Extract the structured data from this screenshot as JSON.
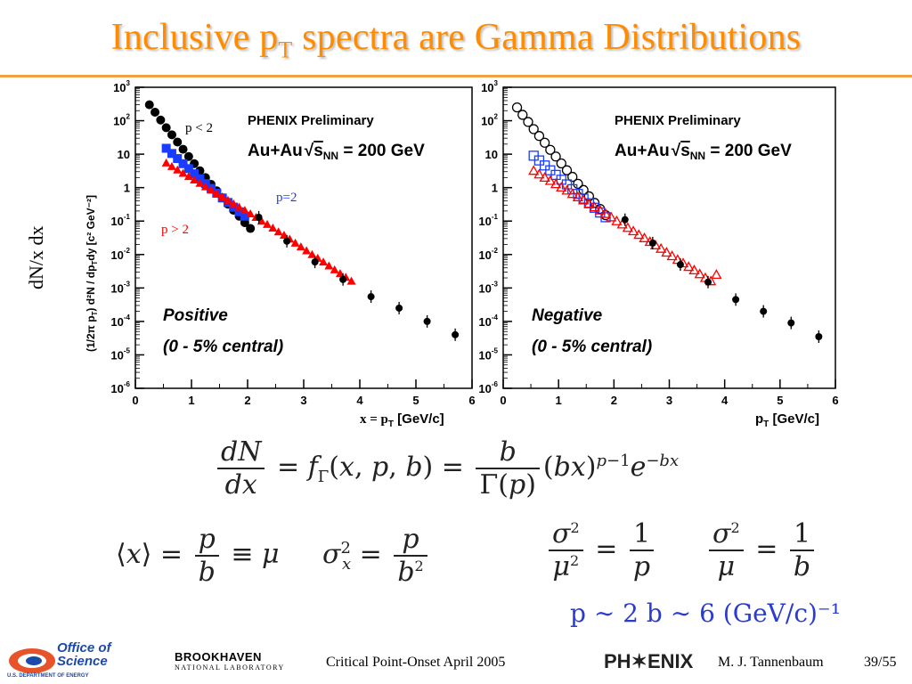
{
  "slide": {
    "title_main": "Inclusive p",
    "title_sub": "T",
    "title_rest": " spectra are Gamma Distributions",
    "side_label": "dN/x dx"
  },
  "left_panel": {
    "header": "PHENIX Preliminary",
    "system": "Au+Au",
    "energy": "s",
    "energy_sub": "NN",
    "energy_val": " = 200 GeV",
    "species": "Positive",
    "centrality": "(0 - 5% central)",
    "xlabel_prefix": "x = p",
    "xlabel_sub": "T",
    "xlabel_unit": " [GeV/c]",
    "ylabel": "(1/2π p",
    "ylabel_rest": ") d²N / dp",
    "ylabel_tail": "dy [c² GeV⁻²]",
    "annot_plt2": "p < 2",
    "annot_p2": "p=2",
    "annot_pgt2": "p > 2"
  },
  "right_panel": {
    "header": "PHENIX Preliminary",
    "system": "Au+Au",
    "energy": "s",
    "energy_sub": "NN",
    "energy_val": " = 200 GeV",
    "species": "Negative",
    "centrality": "(0 - 5% central)",
    "xlabel_prefix": "p",
    "xlabel_sub": "T",
    "xlabel_unit": " [GeV/c]"
  },
  "chart_data": [
    {
      "type": "scatter",
      "title": "PHENIX Preliminary",
      "xlabel": "x = pT [GeV/c]",
      "ylabel": "(1/2π pT) d²N / dpT dy [c² GeV⁻²]",
      "xlim": [
        0,
        6
      ],
      "ylim": [
        1e-06,
        1000
      ],
      "yscale": "log",
      "x_ticks": [
        "0",
        "1",
        "2",
        "3",
        "4",
        "5",
        "6"
      ],
      "y_ticks": [
        "10^3",
        "10^2",
        "10",
        "1",
        "10^-1",
        "10^-2",
        "10^-3",
        "10^-4",
        "10^-5",
        "10^-6"
      ],
      "series": [
        {
          "name": "black",
          "color": "#000000",
          "x": [
            0.25,
            0.35,
            0.45,
            0.55,
            0.65,
            0.75,
            0.85,
            0.95,
            1.05,
            1.15,
            1.25,
            1.35,
            1.45,
            1.55,
            1.65,
            1.75,
            1.85,
            1.95,
            2.05
          ],
          "y": [
            300,
            180,
            105,
            62,
            38,
            23,
            14,
            8.5,
            5.2,
            3.2,
            2.0,
            1.25,
            0.8,
            0.5,
            0.32,
            0.21,
            0.14,
            0.09,
            0.06
          ]
        },
        {
          "name": "blue",
          "color": "#1a3cff",
          "x": [
            0.55,
            0.65,
            0.75,
            0.85,
            0.95,
            1.05,
            1.15,
            1.25,
            1.35,
            1.45,
            1.55,
            1.65,
            1.75,
            1.85,
            1.95
          ],
          "y": [
            15,
            10.5,
            7.4,
            5.2,
            3.7,
            2.6,
            1.85,
            1.32,
            0.95,
            0.68,
            0.49,
            0.36,
            0.26,
            0.19,
            0.14
          ]
        },
        {
          "name": "red",
          "color": "#ff0000",
          "x": [
            0.55,
            0.65,
            0.75,
            0.85,
            0.95,
            1.05,
            1.15,
            1.25,
            1.35,
            1.45,
            1.55,
            1.65,
            1.75,
            1.85,
            1.95,
            2.05,
            2.15,
            2.25,
            2.35,
            2.45,
            2.55,
            2.65,
            2.75,
            2.85,
            2.95,
            3.05,
            3.15,
            3.25,
            3.35,
            3.45,
            3.55,
            3.65,
            3.75,
            3.85
          ],
          "y": [
            5.5,
            4.3,
            3.4,
            2.7,
            2.15,
            1.7,
            1.35,
            1.07,
            0.85,
            0.67,
            0.53,
            0.42,
            0.33,
            0.26,
            0.21,
            0.165,
            0.13,
            0.1,
            0.08,
            0.062,
            0.048,
            0.038,
            0.029,
            0.022,
            0.017,
            0.013,
            0.01,
            0.0078,
            0.006,
            0.0046,
            0.0035,
            0.0027,
            0.0021,
            0.0016
          ]
        },
        {
          "name": "black-high",
          "color": "#000000",
          "x": [
            2.2,
            2.7,
            3.2,
            3.7,
            4.2,
            4.7,
            5.2,
            5.7
          ],
          "y": [
            0.13,
            0.025,
            0.006,
            0.0018,
            0.00055,
            0.00025,
            0.0001,
            4e-05
          ]
        }
      ]
    },
    {
      "type": "scatter",
      "title": "PHENIX Preliminary",
      "xlabel": "pT [GeV/c]",
      "xlim": [
        0,
        6
      ],
      "ylim": [
        1e-06,
        1000
      ],
      "yscale": "log",
      "x_ticks": [
        "0",
        "1",
        "2",
        "3",
        "4",
        "5",
        "6"
      ],
      "series": [
        {
          "name": "black-open",
          "color": "#000000",
          "x": [
            0.25,
            0.35,
            0.45,
            0.55,
            0.65,
            0.75,
            0.85,
            0.95,
            1.05,
            1.15,
            1.25,
            1.35,
            1.45,
            1.55,
            1.65,
            1.75,
            1.85
          ],
          "y": [
            250,
            150,
            92,
            56,
            35,
            22,
            13.5,
            8.5,
            5.3,
            3.3,
            2.1,
            1.3,
            0.85,
            0.55,
            0.35,
            0.23,
            0.15
          ]
        },
        {
          "name": "blue-open",
          "color": "#1a3cff",
          "x": [
            0.55,
            0.65,
            0.75,
            0.85,
            0.95,
            1.05,
            1.15,
            1.25,
            1.35,
            1.45,
            1.55,
            1.65,
            1.75,
            1.85
          ],
          "y": [
            9,
            6.5,
            4.6,
            3.3,
            2.4,
            1.72,
            1.25,
            0.9,
            0.65,
            0.47,
            0.34,
            0.25,
            0.18,
            0.13
          ]
        },
        {
          "name": "red-open",
          "color": "#ff0000",
          "x": [
            0.55,
            0.65,
            0.75,
            0.85,
            0.95,
            1.05,
            1.15,
            1.25,
            1.35,
            1.45,
            1.55,
            1.65,
            1.75,
            1.85,
            1.95,
            2.05,
            2.15,
            2.25,
            2.35,
            2.45,
            2.55,
            2.65,
            2.75,
            2.85,
            2.95,
            3.05,
            3.15,
            3.25,
            3.35,
            3.45,
            3.55,
            3.65,
            3.75,
            3.85
          ],
          "y": [
            3.2,
            2.5,
            2.0,
            1.6,
            1.28,
            1.02,
            0.82,
            0.65,
            0.52,
            0.42,
            0.33,
            0.26,
            0.21,
            0.165,
            0.13,
            0.1,
            0.08,
            0.063,
            0.05,
            0.039,
            0.031,
            0.024,
            0.019,
            0.015,
            0.0115,
            0.009,
            0.007,
            0.0055,
            0.0043,
            0.0034,
            0.0026,
            0.002,
            0.0016,
            0.0025
          ]
        },
        {
          "name": "black-high",
          "color": "#000000",
          "x": [
            2.2,
            2.7,
            3.2,
            3.7,
            4.2,
            4.7,
            5.2,
            5.7
          ],
          "y": [
            0.11,
            0.022,
            0.005,
            0.0015,
            0.00045,
            0.0002,
            9e-05,
            3.5e-05
          ]
        }
      ]
    }
  ],
  "equations": {
    "gamma": "dN/dx = fΓ(x,p,b) = b/Γ(p) (bx)^(p-1) e^(-bx)",
    "mean": "⟨x⟩ = p/b ≡ μ",
    "variance": "σx² = p/b²",
    "ratio1": "σ²/μ² = 1/p",
    "ratio2": "σ²/μ = 1/b",
    "result": "p ∼ 2    b ∼ 6 (GeV/c)⁻¹"
  },
  "footer": {
    "office_line1": "Office of",
    "office_line2": "Science",
    "doe": "U.S. DEPARTMENT OF ENERGY",
    "bnl_line1": "BROOKHAVEN",
    "bnl_line2": "NATIONAL LABORATORY",
    "talk": "Critical Point-Onset April 2005",
    "phenix": "PH✶ENIX",
    "author": "M. J. Tannenbaum",
    "page": "39/55"
  },
  "colors": {
    "title": "#ff8c00",
    "rule": "#f2a044",
    "black_series": "#000000",
    "blue_series": "#1a3cff",
    "red_series": "#ff0000",
    "result": "#2a3ccf"
  }
}
